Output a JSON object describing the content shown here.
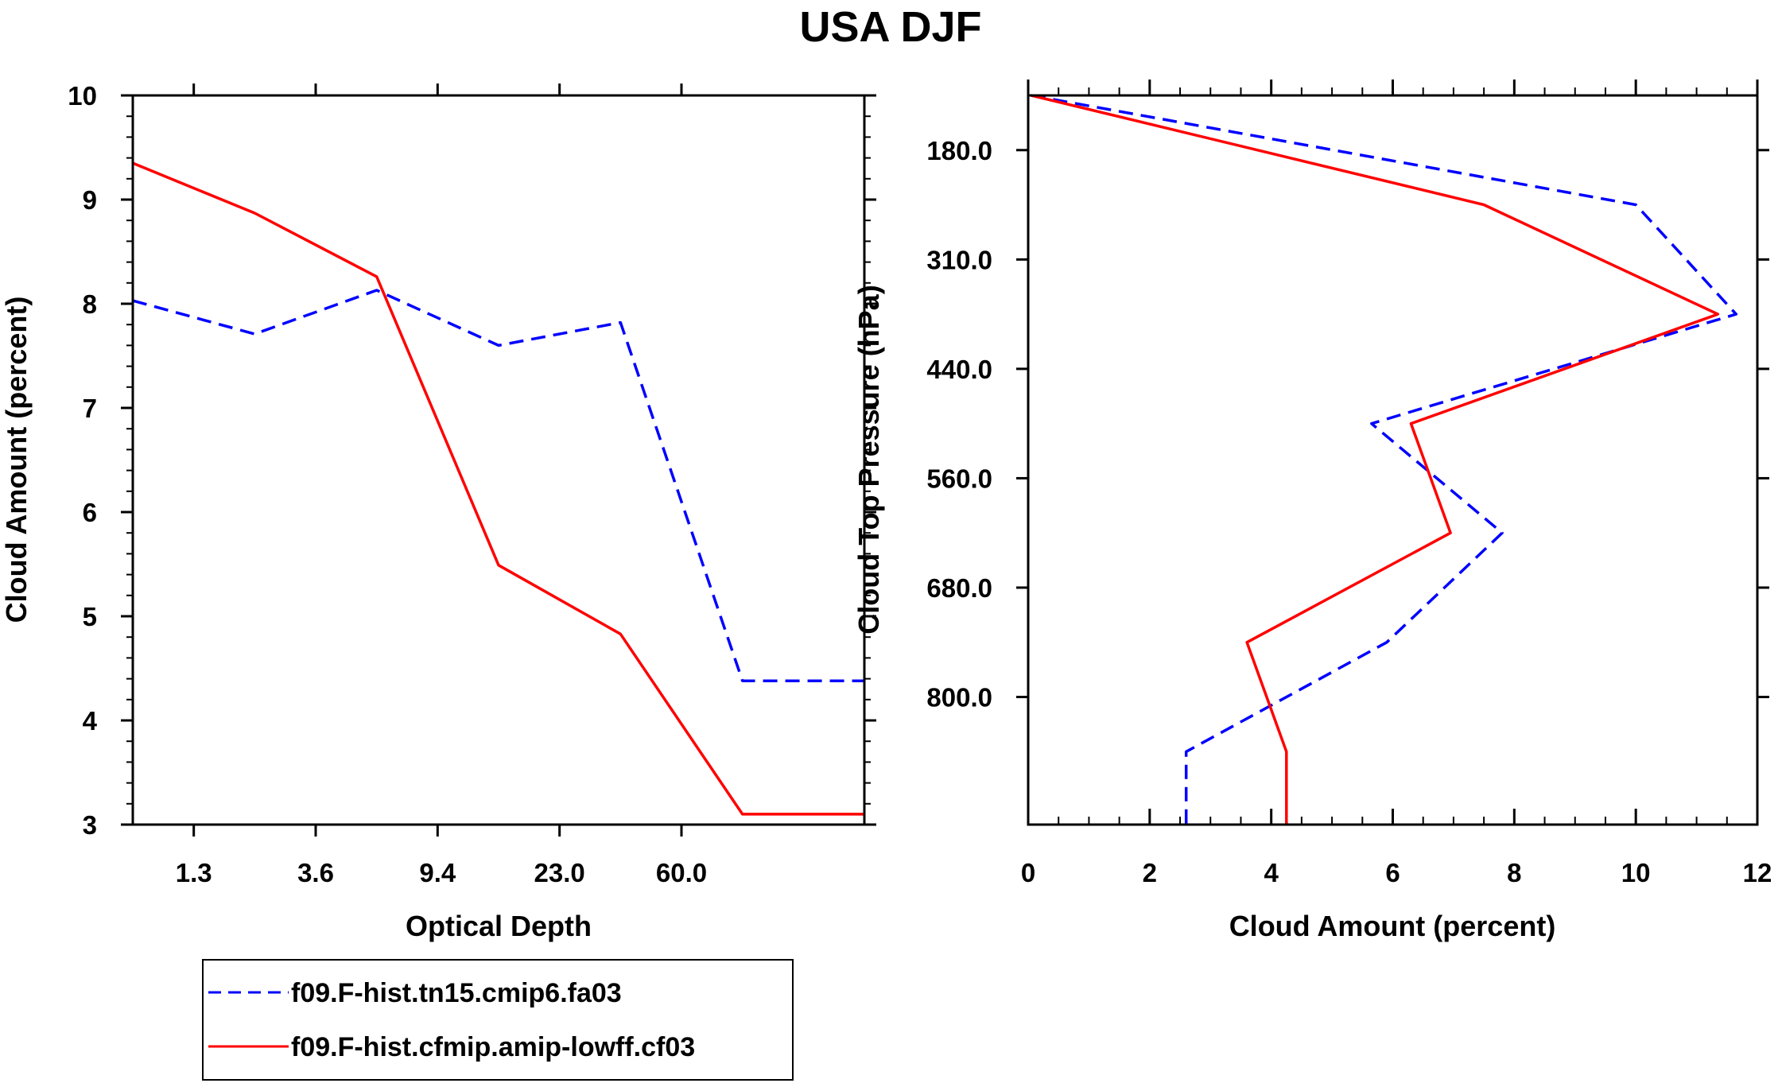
{
  "chart_data": [
    {
      "type": "line",
      "title": "USA DJF",
      "xlabel": "Optical Depth",
      "ylabel": "Cloud Amount (percent)",
      "ylim": [
        3,
        10
      ],
      "yticks": [
        "3",
        "4",
        "5",
        "6",
        "7",
        "8",
        "9",
        "10"
      ],
      "xtick_labels": [
        "1.3",
        "3.6",
        "9.4",
        "23.0",
        "60.0"
      ],
      "x": [
        0.5,
        1.5,
        2.5,
        3.5,
        4.5,
        5.5,
        6.5
      ],
      "xlim": [
        0.5,
        6.5
      ],
      "series": [
        {
          "name": "f09.F-hist.tn15.cmip6.fa03",
          "color": "#0000ff",
          "style": "dashed",
          "values": [
            8.03,
            7.71,
            8.13,
            7.6,
            7.82,
            4.38,
            4.38
          ]
        },
        {
          "name": "f09.F-hist.cfmip.amip-lowff.cf03",
          "color": "#ff0000",
          "style": "solid",
          "values": [
            9.35,
            8.87,
            8.26,
            5.49,
            4.83,
            3.1,
            3.1
          ]
        }
      ]
    },
    {
      "type": "line",
      "xlabel": "Cloud Amount (percent)",
      "ylabel": "Cloud Top Pressure (hPa)",
      "xlim": [
        0,
        12
      ],
      "xticks": [
        "0",
        "2",
        "4",
        "6",
        "8",
        "10",
        "12"
      ],
      "ylim": [
        120,
        920
      ],
      "y_inverted": true,
      "ytick_labels": [
        "180.0",
        "310.0",
        "440.0",
        "560.0",
        "680.0",
        "800.0"
      ],
      "ytick_values": [
        180,
        300,
        420,
        540,
        660,
        780
      ],
      "pressure": [
        120,
        240,
        360,
        480,
        600,
        720,
        840,
        920
      ],
      "series": [
        {
          "name": "f09.F-hist.tn15.cmip6.fa03",
          "color": "#0000ff",
          "style": "dashed",
          "values": [
            0.05,
            10.0,
            11.65,
            5.65,
            7.8,
            5.9,
            2.6,
            2.6
          ]
        },
        {
          "name": "f09.F-hist.cfmip.amip-lowff.cf03",
          "color": "#ff0000",
          "style": "solid",
          "values": [
            0.05,
            7.5,
            11.35,
            6.3,
            6.95,
            3.6,
            4.25,
            4.25
          ]
        }
      ]
    }
  ],
  "legend": {
    "entries": [
      {
        "label": "f09.F-hist.tn15.cmip6.fa03",
        "color": "#0000ff",
        "style": "dashed"
      },
      {
        "label": "f09.F-hist.cfmip.amip-lowff.cf03",
        "color": "#ff0000",
        "style": "solid"
      }
    ]
  }
}
